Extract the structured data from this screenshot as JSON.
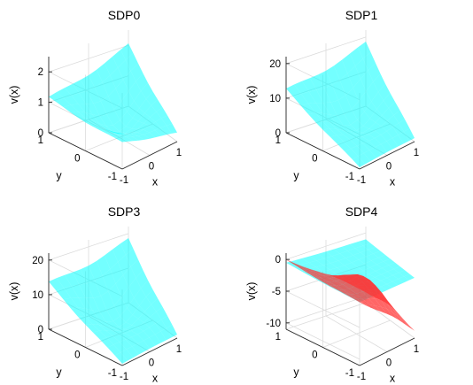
{
  "chart_data": [
    {
      "type": "surface",
      "title": "SDP0",
      "xlabel": "x",
      "ylabel": "y",
      "zlabel": "v(x)",
      "xlim": [
        -1,
        1
      ],
      "ylim": [
        -1,
        1
      ],
      "zlim": [
        0,
        2.5
      ],
      "xticks": [
        "-1",
        "0",
        "1"
      ],
      "yticks": [
        "-1",
        "0",
        "1"
      ],
      "zticks": [
        "0",
        "1",
        "2"
      ],
      "grid": true,
      "series": [
        {
          "color": "#00ffff",
          "opacity": 0.55,
          "corner_values": {
            "x_neg_y_neg": 0.9,
            "x_pos_y_neg": 0.3,
            "x_pos_y_pos": 2.1,
            "x_neg_y_pos": 1.2
          },
          "center_value": 0.2
        }
      ]
    },
    {
      "type": "surface",
      "title": "SDP1",
      "xlabel": "x",
      "ylabel": "y",
      "zlabel": "v(x)",
      "xlim": [
        -1,
        1
      ],
      "ylim": [
        -1,
        1
      ],
      "zlim": [
        0,
        22
      ],
      "xticks": [
        "-1",
        "0",
        "1"
      ],
      "yticks": [
        "-1",
        "0",
        "1"
      ],
      "zticks": [
        "0",
        "10",
        "20"
      ],
      "grid": true,
      "series": [
        {
          "color": "#00ffff",
          "opacity": 0.55,
          "corner_values": {
            "x_neg_y_neg": 0.5,
            "x_pos_y_neg": 1.0,
            "x_pos_y_pos": 19.0,
            "x_neg_y_pos": 13.0
          },
          "center_value": 2.0
        }
      ]
    },
    {
      "type": "surface",
      "title": "SDP3",
      "xlabel": "x",
      "ylabel": "y",
      "zlabel": "v(x)",
      "xlim": [
        -1,
        1
      ],
      "ylim": [
        -1,
        1
      ],
      "zlim": [
        0,
        22
      ],
      "xticks": [
        "-1",
        "0",
        "1"
      ],
      "yticks": [
        "-1",
        "0",
        "1"
      ],
      "zticks": [
        "0",
        "10",
        "20"
      ],
      "grid": true,
      "series": [
        {
          "color": "#00ffff",
          "opacity": 0.55,
          "corner_values": {
            "x_neg_y_neg": 0.5,
            "x_pos_y_neg": 1.0,
            "x_pos_y_pos": 19.0,
            "x_neg_y_pos": 14.0
          },
          "center_value": 2.0
        }
      ]
    },
    {
      "type": "surface",
      "title": "SDP4",
      "xlabel": "x",
      "ylabel": "y",
      "zlabel": "v(x)",
      "xlim": [
        -1,
        1
      ],
      "ylim": [
        -1,
        1
      ],
      "zlim": [
        -11,
        1
      ],
      "xticks": [
        "-1",
        "0",
        "1"
      ],
      "yticks": [
        "-1",
        "0",
        "1"
      ],
      "zticks": [
        "-10",
        "-5",
        "0"
      ],
      "grid": true,
      "series": [
        {
          "color": "#00ffff",
          "opacity": 0.55,
          "corner_values": {
            "x_neg_y_neg": -1.0,
            "x_pos_y_neg": -1.5,
            "x_pos_y_pos": -1.0,
            "x_neg_y_pos": -0.5
          },
          "center_value": -1.5
        },
        {
          "color": "#ff3333",
          "opacity": 0.75,
          "corner_values": {
            "x_neg_y_neg": -1.0,
            "x_pos_y_neg": -10.0,
            "x_pos_y_pos": -9.5,
            "x_neg_y_pos": 0.0
          },
          "center_value": -2.0
        }
      ]
    }
  ]
}
